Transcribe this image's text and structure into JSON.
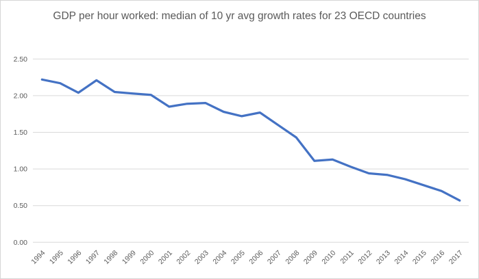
{
  "chart_data": {
    "type": "line",
    "title": "GDP per hour worked: median of 10 yr avg growth rates for 23 OECD countries",
    "categories": [
      "1994",
      "1995",
      "1996",
      "1997",
      "1998",
      "1999",
      "2000",
      "2001",
      "2002",
      "2003",
      "2004",
      "2005",
      "2006",
      "2007",
      "2008",
      "2009",
      "2010",
      "2011",
      "2012",
      "2013",
      "2014",
      "2015",
      "2016",
      "2017"
    ],
    "values": [
      2.22,
      2.17,
      2.04,
      2.21,
      2.05,
      2.03,
      2.01,
      1.85,
      1.89,
      1.9,
      1.78,
      1.72,
      1.77,
      1.6,
      1.43,
      1.11,
      1.13,
      1.03,
      0.94,
      0.92,
      0.86,
      0.78,
      0.7,
      0.57
    ],
    "xlabel": "",
    "ylabel": "",
    "ylim": [
      0,
      2.5
    ],
    "y_ticks": [
      {
        "value": 2.5,
        "label": "2.50"
      },
      {
        "value": 2.0,
        "label": "2.00"
      },
      {
        "value": 1.5,
        "label": "1.50"
      },
      {
        "value": 1.0,
        "label": "1.00"
      },
      {
        "value": 0.5,
        "label": "0.50"
      },
      {
        "value": 0.0,
        "label": "0.00"
      }
    ],
    "grid": "horizontal",
    "legend": "none"
  },
  "colors": {
    "line": "#4472C4",
    "gridline": "#d9d9d9",
    "text": "#595959",
    "background": "#ffffff"
  }
}
